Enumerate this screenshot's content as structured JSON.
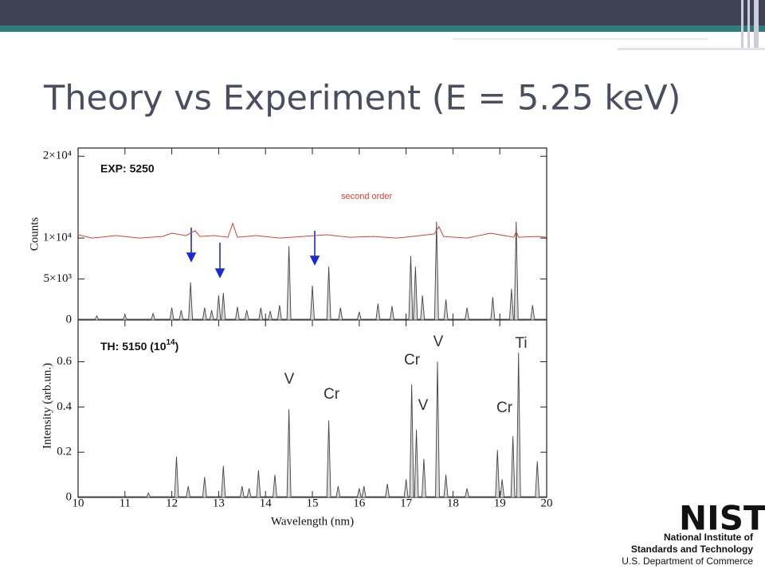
{
  "slide": {
    "title": "Theory vs Experiment (E = 5.25 keV)"
  },
  "logo": {
    "mark": "NIST",
    "lines": [
      "National Institute of",
      "Standards and Technology",
      "U.S. Department of Commerce"
    ]
  },
  "chart_data": [
    {
      "type": "spectrum",
      "panel_label": "EXP: 5250",
      "y_label": "Counts",
      "xlim": [
        10,
        20
      ],
      "xticks": [
        10,
        11,
        12,
        13,
        14,
        15,
        16,
        17,
        18,
        19,
        20
      ],
      "ylim": [
        0,
        21000
      ],
      "yticks": [
        0,
        {
          "value": 5000,
          "label": "5×10³"
        },
        {
          "value": 10000,
          "label": "1×10⁴"
        },
        {
          "value": 20000,
          "label": "2×10⁴"
        }
      ],
      "series": [
        {
          "style": "peaks",
          "color": "#444",
          "fill": "#d8d8d8",
          "x": [
            10.4,
            11.0,
            11.6,
            12.0,
            12.2,
            12.4,
            12.7,
            12.85,
            13.0,
            13.1,
            13.4,
            13.6,
            13.9,
            14.1,
            14.3,
            14.5,
            15.0,
            15.35,
            15.6,
            16.0,
            16.4,
            16.7,
            17.1,
            17.2,
            17.35,
            17.65,
            17.85,
            18.3,
            18.85,
            19.25,
            19.35,
            19.7
          ],
          "values": [
            500,
            600,
            800,
            1500,
            1200,
            4600,
            1500,
            1200,
            3000,
            3300,
            1600,
            1200,
            1500,
            1100,
            1800,
            9000,
            4200,
            6500,
            1500,
            1000,
            2000,
            1700,
            7800,
            6500,
            3000,
            12000,
            2500,
            1500,
            2800,
            3800,
            12000,
            1800
          ]
        },
        {
          "style": "line",
          "name": "second order",
          "color": "#e0402f",
          "x": [
            10,
            10.3,
            10.8,
            11.3,
            11.8,
            12.0,
            12.3,
            12.5,
            12.6,
            12.9,
            13.2,
            13.3,
            13.4,
            13.8,
            14.3,
            14.8,
            15.3,
            15.8,
            16.3,
            16.8,
            17.3,
            17.6,
            17.7,
            17.8,
            18.3,
            18.8,
            19.3,
            19.35,
            19.4,
            19.8,
            20
          ],
          "values": [
            10400,
            10000,
            10300,
            10000,
            10200,
            10600,
            10300,
            10900,
            10200,
            10300,
            10100,
            11800,
            10100,
            10300,
            10000,
            10200,
            10400,
            10100,
            10200,
            10000,
            10300,
            10500,
            11400,
            10200,
            10000,
            10600,
            10100,
            10800,
            10100,
            10200,
            10100
          ]
        }
      ]
    },
    {
      "type": "spectrum",
      "panel_label": [
        "TH: 5150 (10",
        "14",
        ")"
      ],
      "y_label": "Intensity (arb.un.)",
      "x_label": "Wavelength (nm)",
      "xlim": [
        10,
        20
      ],
      "xticks": [
        10,
        11,
        12,
        13,
        14,
        15,
        16,
        17,
        18,
        19,
        20
      ],
      "ylim": [
        0,
        0.785
      ],
      "yticks": [
        0,
        0.2,
        0.4,
        0.6
      ],
      "annotations": [
        "V",
        "Cr",
        "Cr",
        "V",
        "V",
        "Cr",
        "Ti"
      ],
      "series": [
        {
          "style": "peaks",
          "color": "#444",
          "fill": "#d8d8d8",
          "x": [
            11.5,
            12.1,
            12.35,
            12.7,
            13.1,
            13.5,
            13.65,
            13.85,
            14.2,
            14.5,
            15.35,
            15.55,
            16.0,
            16.1,
            16.6,
            17.0,
            17.12,
            17.22,
            17.38,
            17.67,
            17.85,
            18.3,
            18.95,
            19.05,
            19.28,
            19.4,
            19.8
          ],
          "values": [
            0.02,
            0.18,
            0.05,
            0.09,
            0.14,
            0.05,
            0.04,
            0.12,
            0.1,
            0.39,
            0.34,
            0.05,
            0.04,
            0.05,
            0.06,
            0.08,
            0.5,
            0.3,
            0.17,
            0.6,
            0.1,
            0.04,
            0.21,
            0.08,
            0.27,
            0.64,
            0.16
          ]
        }
      ]
    }
  ]
}
